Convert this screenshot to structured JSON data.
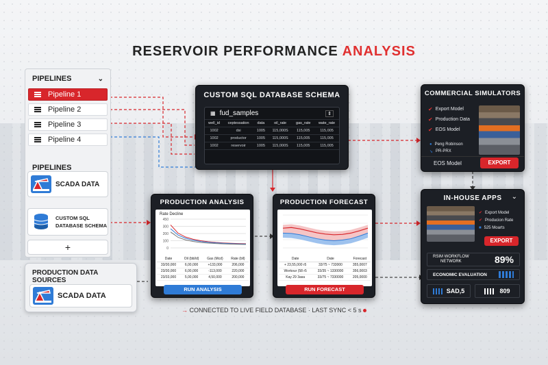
{
  "title": {
    "part1": "RESERVOIR PERFORMANCE",
    "part2": "ANALYSIS"
  },
  "pipelines_panel": {
    "heading": "PIPELINES",
    "items": [
      "Pipeline 1",
      "Pipeline 2",
      "Pipeline 3",
      "Pipeline 4"
    ],
    "active_index": 0,
    "sources_heading": "PIPELINES",
    "scada": "SCADA DATA",
    "sql_line1": "CUSTOM SQL",
    "sql_line2": "DATABASE SCHEMA",
    "add": "+"
  },
  "sources_panel": {
    "heading": "PRODUCTION DATA SOURCES",
    "scada": "SCADA DATA"
  },
  "sql_panel": {
    "heading": "CUSTOM SQL DATABASE SCHEMA",
    "table_name": "fud_samples",
    "columns": [
      "well_id",
      "ceptessation",
      "data",
      "oil_rate",
      "gas_rate",
      "wate_rate"
    ],
    "rows": [
      [
        "1002",
        "dsi",
        "1005",
        "115,000S",
        "115,005",
        "115,005"
      ],
      [
        "1002",
        "productor",
        "1005",
        "115,000S",
        "115,005",
        "115,005"
      ],
      [
        "1002",
        "reservoir",
        "1005",
        "115,000S",
        "115,005",
        "115,005"
      ]
    ]
  },
  "simulators": {
    "heading": "COMMERCIAL SIMULATORS",
    "checks": [
      "Export Model",
      "Production Data",
      "EOS Model"
    ],
    "options": [
      "Peng Robinson",
      "PR-PRX"
    ],
    "footer": "EOS Model",
    "export": "EXPORT"
  },
  "production_analysis": {
    "heading": "PRODUCTION ANALYSIS",
    "chart_title": "Rate Decline",
    "y_ticks": [
      "450",
      "300",
      "200",
      "100",
      "0"
    ],
    "cols": [
      "Date",
      "Oil (bbl/d)",
      "Gas (Mcd)",
      "Rate (bll)"
    ],
    "rows": [
      [
        "33/30,000",
        "6,00,000",
        "+133,000",
        "206,000"
      ],
      [
        "23/30,000",
        "6,00,000",
        "-113,000",
        "220,000"
      ],
      [
        "23/33,000",
        "5,00,000",
        "4,50,000",
        "200,000"
      ]
    ],
    "button": "RUN ANALYSIS"
  },
  "production_forecast": {
    "heading": "PRODUCTION FORECAST",
    "cols": [
      "Date",
      "Date",
      "Forecast"
    ],
    "rows": [
      [
        "+ 23,55,000 r5",
        "33/75 ~ 733000",
        "355,0007"
      ],
      [
        "Workour (58 r5",
        "33/35 ~ 1330000",
        "356,0003"
      ],
      [
        "Kay 29 3asa",
        "33/75 ~ 7330000",
        "205,0000"
      ]
    ],
    "button": "RUN FORECAST"
  },
  "inhouse": {
    "heading": "IN-HOUSE APPS",
    "items": [
      "Export Model",
      "Producion Rate",
      "525 Moarts"
    ],
    "export": "EXPORT",
    "rsim_line1": "RSIM WORKFLOW",
    "rsim_line2": "NETWORK",
    "rsim_value": "89%",
    "econ": "ECONOMIC EVALUATION",
    "stat1": "SAD,5",
    "stat2": "809"
  },
  "status": {
    "text": "CONNECTED TO LIVE FIELD DATABASE · LAST SYNC < 5 s"
  },
  "colors": {
    "accent": "#d8262b",
    "blue": "#2f7bd6",
    "dark": "#1c1f25"
  },
  "chart_data": [
    {
      "type": "line",
      "title": "Rate Decline",
      "yticks": [
        "450",
        "300",
        "200",
        "100",
        "0"
      ],
      "ylim": [
        0,
        450
      ],
      "x": [
        0,
        1,
        2,
        3,
        4,
        5,
        6,
        7,
        8,
        9,
        10
      ],
      "series": [
        {
          "values": [
            360,
            230,
            170,
            135,
            112,
            97,
            86,
            78,
            72,
            68,
            65
          ]
        },
        {
          "values": [
            300,
            200,
            150,
            120,
            100,
            88,
            79,
            72,
            67,
            63,
            60
          ]
        },
        {
          "values": [
            250,
            165,
            125,
            100,
            85,
            75,
            68,
            63,
            59,
            56,
            54
          ]
        }
      ]
    },
    {
      "type": "area",
      "series": [
        {
          "values": [
            60,
            62,
            58,
            52,
            46,
            42,
            40,
            41,
            45,
            52,
            60
          ]
        },
        {
          "values": [
            45,
            44,
            40,
            34,
            28,
            24,
            22,
            24,
            28,
            36,
            45
          ]
        }
      ]
    }
  ]
}
